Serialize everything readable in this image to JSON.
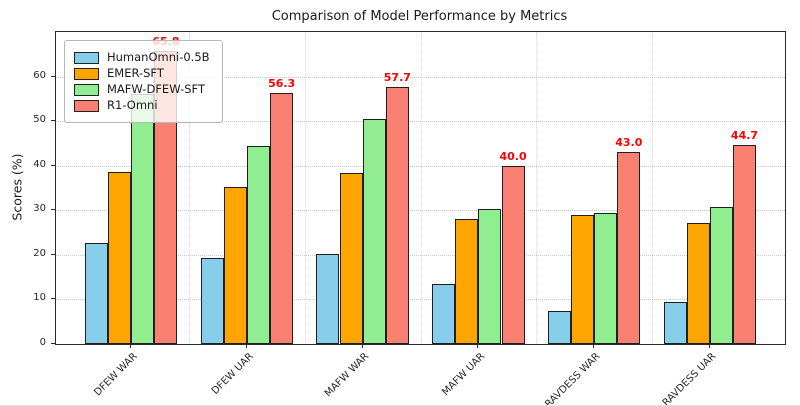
{
  "chart_data": {
    "type": "bar",
    "title": "Comparison of Model Performance by Metrics",
    "xlabel": "",
    "ylabel": "Scores (%)",
    "categories": [
      "DFEW WAR",
      "DFEW UAR",
      "MAFW WAR",
      "MAFW UAR",
      "RAVDESS WAR",
      "RAVDESS UAR"
    ],
    "series": [
      {
        "name": "HumanOmni-0.5B",
        "color": "#87CEEB",
        "values": [
          22.6,
          19.4,
          20.2,
          13.5,
          7.3,
          9.4
        ]
      },
      {
        "name": "EMER-SFT",
        "color": "#FFA500",
        "values": [
          38.7,
          35.3,
          38.4,
          28.0,
          29.0,
          27.2
        ]
      },
      {
        "name": "MAFW-DFEW-SFT",
        "color": "#90EE90",
        "values": [
          56.1,
          44.4,
          50.4,
          30.4,
          29.3,
          30.8
        ]
      },
      {
        "name": "R1-Omni",
        "color": "#FA8072",
        "values": [
          65.8,
          56.3,
          57.7,
          40.0,
          43.0,
          44.7
        ],
        "value_labels": [
          "65.8",
          "56.3",
          "57.7",
          "40.0",
          "43.0",
          "44.7"
        ]
      }
    ],
    "value_label_color": "#ff0000",
    "bar_edge_color": "#1f1f1f",
    "yticks": [
      0,
      10,
      20,
      30,
      40,
      50,
      60
    ],
    "ylim": [
      0,
      70
    ],
    "grid": true,
    "legend_position": "upper left"
  }
}
